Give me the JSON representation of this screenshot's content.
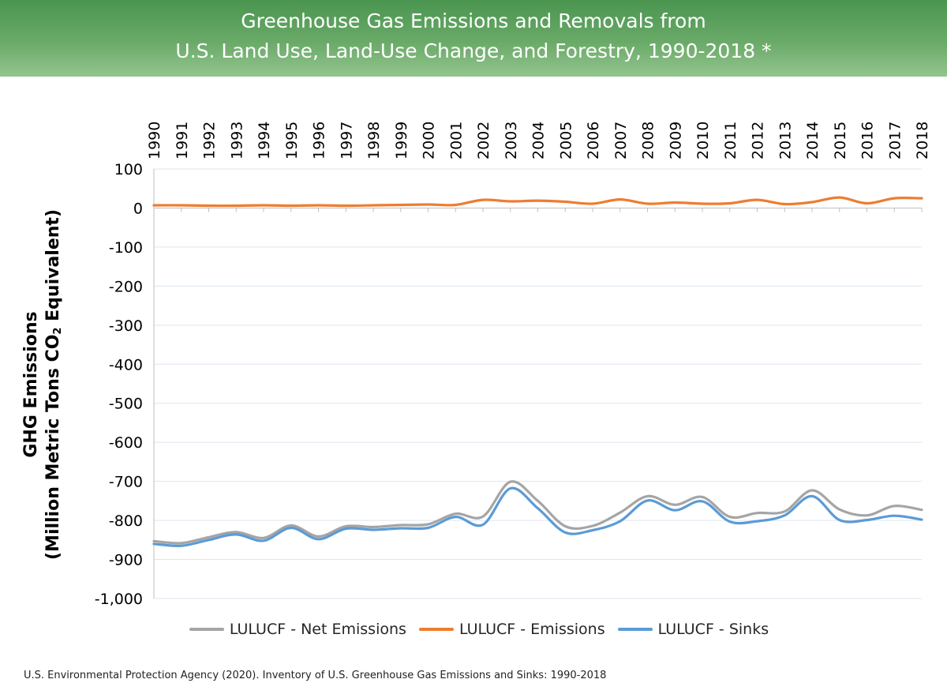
{
  "header": {
    "title_line1": "Greenhouse Gas Emissions and Removals from",
    "title_line2": "U.S. Land Use, Land-Use Change, and Forestry, 1990-2018 *"
  },
  "chart_data": {
    "type": "line",
    "title": "Greenhouse Gas Emissions and Removals from U.S. Land Use, Land-Use Change, and Forestry, 1990-2018 *",
    "ylabel_line1": "GHG Emissions",
    "ylabel_line2_pre": "(Million Metric Tons CO",
    "ylabel_line2_sub": "2",
    "ylabel_line2_post": " Equivalent)",
    "ylim": [
      -1000,
      100
    ],
    "yticks": [
      100,
      0,
      -100,
      -200,
      -300,
      -400,
      -500,
      -600,
      -700,
      -800,
      -900,
      -1000
    ],
    "ytick_labels": [
      "100",
      "0",
      "-100",
      "-200",
      "-300",
      "-400",
      "-500",
      "-600",
      "-700",
      "-800",
      "-900",
      "-1,000"
    ],
    "x": [
      1990,
      1991,
      1992,
      1993,
      1994,
      1995,
      1996,
      1997,
      1998,
      1999,
      2000,
      2001,
      2002,
      2003,
      2004,
      2005,
      2006,
      2007,
      2008,
      2009,
      2010,
      2011,
      2012,
      2013,
      2014,
      2015,
      2016,
      2017,
      2018
    ],
    "x_tick_labels": [
      "1990",
      "1991",
      "1992",
      "1993",
      "1994",
      "1995",
      "1996",
      "1997",
      "1998",
      "1999",
      "2000",
      "2001",
      "2002",
      "2003",
      "2004",
      "2005",
      "2006",
      "2007",
      "2008",
      "2009",
      "2010",
      "2011",
      "2012",
      "2013",
      "2014",
      "2015",
      "2016",
      "2017",
      "2018"
    ],
    "x_axis_position": "top",
    "grid": "horizontal",
    "legend_position": "bottom",
    "series": [
      {
        "name": "LULUCF - Net Emissions",
        "color": "#a5a5a5",
        "values": [
          -853,
          -858,
          -843,
          -830,
          -845,
          -813,
          -841,
          -815,
          -817,
          -812,
          -810,
          -783,
          -790,
          -701,
          -750,
          -815,
          -814,
          -780,
          -738,
          -760,
          -740,
          -791,
          -781,
          -777,
          -723,
          -772,
          -787,
          -763,
          -773
        ]
      },
      {
        "name": "LULUCF - Emissions",
        "color": "#ed7d31",
        "values": [
          7,
          7,
          6,
          6,
          7,
          6,
          7,
          6,
          7,
          8,
          9,
          8,
          21,
          17,
          19,
          16,
          11,
          22,
          11,
          14,
          11,
          12,
          21,
          10,
          15,
          27,
          12,
          25,
          25
        ]
      },
      {
        "name": "LULUCF - Sinks",
        "color": "#5b9bd5",
        "values": [
          -860,
          -865,
          -850,
          -836,
          -852,
          -819,
          -848,
          -821,
          -824,
          -820,
          -819,
          -791,
          -811,
          -718,
          -769,
          -831,
          -825,
          -802,
          -749,
          -774,
          -751,
          -803,
          -802,
          -787,
          -738,
          -799,
          -799,
          -788,
          -798
        ]
      }
    ]
  },
  "legend": {
    "net_label": "LULUCF - Net Emissions",
    "emissions_label": "LULUCF - Emissions",
    "sinks_label": "LULUCF - Sinks"
  },
  "footer": {
    "source": "U.S. Environmental Protection Agency (2020). Inventory of U.S. Greenhouse Gas Emissions and Sinks: 1990-2018"
  }
}
